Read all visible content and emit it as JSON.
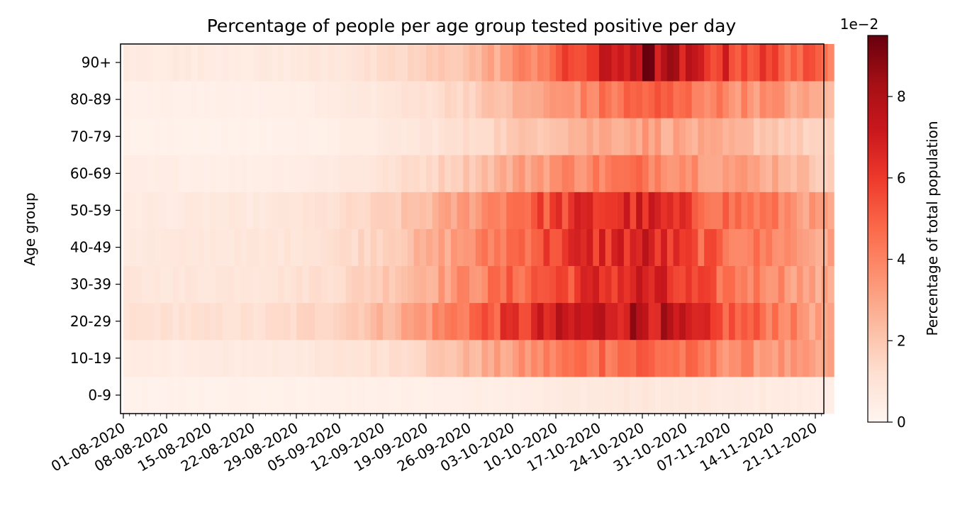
{
  "chart_data": {
    "type": "heatmap",
    "title": "Percentage of people per age group tested positive per day",
    "xlabel": "",
    "ylabel": "Age group",
    "colorbar": {
      "label": "Percentage of total population",
      "scale_label": "1e−2",
      "ticks": [
        "0",
        "2",
        "4",
        "6",
        "8"
      ],
      "tick_values": [
        0,
        2,
        4,
        6,
        8
      ],
      "range": [
        0,
        9.5
      ],
      "colormap": "Reds"
    },
    "y_categories": [
      "0-9",
      "10-19",
      "20-29",
      "30-39",
      "40-49",
      "50-59",
      "60-69",
      "70-79",
      "80-89",
      "90+"
    ],
    "x_ticks": [
      "01-08-2020",
      "08-08-2020",
      "15-08-2020",
      "22-08-2020",
      "29-08-2020",
      "05-09-2020",
      "12-09-2020",
      "19-09-2020",
      "26-09-2020",
      "03-10-2020",
      "10-10-2020",
      "17-10-2020",
      "24-10-2020",
      "31-10-2020",
      "07-11-2020",
      "14-11-2020",
      "21-11-2020"
    ],
    "x_range": [
      "01-08-2020",
      "23-11-2020"
    ],
    "values_note_unit": "x 1e-2 percent",
    "weekly_values": {
      "weeks": [
        "01-08-2020",
        "08-08-2020",
        "15-08-2020",
        "22-08-2020",
        "29-08-2020",
        "05-09-2020",
        "12-09-2020",
        "19-09-2020",
        "26-09-2020",
        "03-10-2020",
        "10-10-2020",
        "17-10-2020",
        "24-10-2020",
        "31-10-2020",
        "07-11-2020",
        "14-11-2020",
        "21-11-2020"
      ],
      "series": [
        {
          "name": "0-9",
          "values": [
            0.2,
            0.2,
            0.2,
            0.2,
            0.2,
            0.3,
            0.3,
            0.3,
            0.4,
            0.5,
            0.6,
            0.7,
            0.8,
            0.7,
            0.6,
            0.6,
            0.5
          ]
        },
        {
          "name": "10-19",
          "values": [
            0.5,
            0.5,
            0.6,
            0.6,
            0.7,
            0.9,
            1.2,
            1.8,
            2.5,
            3.2,
            4.2,
            4.8,
            5.0,
            4.3,
            3.8,
            3.4,
            2.8
          ]
        },
        {
          "name": "20-29",
          "values": [
            1.1,
            1.1,
            1.1,
            1.1,
            1.4,
            1.8,
            2.5,
            3.5,
            4.8,
            5.9,
            6.8,
            7.3,
            8.0,
            6.3,
            5.1,
            4.5,
            3.0
          ]
        },
        {
          "name": "30-39",
          "values": [
            0.8,
            0.8,
            0.9,
            0.9,
            1.1,
            1.4,
            2.0,
            2.9,
            3.8,
            4.8,
            5.6,
            6.3,
            6.8,
            5.5,
            4.4,
            3.9,
            2.8
          ]
        },
        {
          "name": "40-49",
          "values": [
            0.7,
            0.7,
            0.8,
            0.8,
            1.0,
            1.3,
            1.8,
            2.6,
            3.6,
            4.8,
            5.9,
            6.4,
            6.8,
            5.4,
            4.4,
            4.0,
            2.9
          ]
        },
        {
          "name": "50-59",
          "values": [
            0.6,
            0.6,
            0.7,
            0.7,
            0.9,
            1.2,
            1.6,
            2.4,
            3.4,
            4.8,
            5.8,
            6.3,
            6.6,
            5.5,
            4.6,
            4.1,
            3.0
          ]
        },
        {
          "name": "60-69",
          "values": [
            0.4,
            0.4,
            0.4,
            0.4,
            0.5,
            0.7,
            1.0,
            1.5,
            2.1,
            3.0,
            3.7,
            4.1,
            4.4,
            3.8,
            3.2,
            2.9,
            2.0
          ]
        },
        {
          "name": "70-79",
          "values": [
            0.2,
            0.2,
            0.2,
            0.2,
            0.3,
            0.4,
            0.6,
            0.9,
            1.3,
            1.9,
            2.5,
            2.9,
            3.2,
            2.8,
            2.4,
            2.1,
            1.5
          ]
        },
        {
          "name": "80-89",
          "values": [
            0.3,
            0.3,
            0.3,
            0.3,
            0.4,
            0.6,
            0.8,
            1.2,
            1.7,
            2.5,
            3.3,
            4.2,
            5.0,
            4.5,
            3.8,
            3.4,
            2.6
          ]
        },
        {
          "name": "90+",
          "values": [
            0.6,
            0.6,
            0.6,
            0.6,
            0.7,
            0.9,
            1.2,
            1.7,
            2.3,
            3.5,
            5.0,
            6.5,
            8.4,
            6.8,
            6.0,
            5.4,
            4.6
          ]
        }
      ]
    }
  }
}
